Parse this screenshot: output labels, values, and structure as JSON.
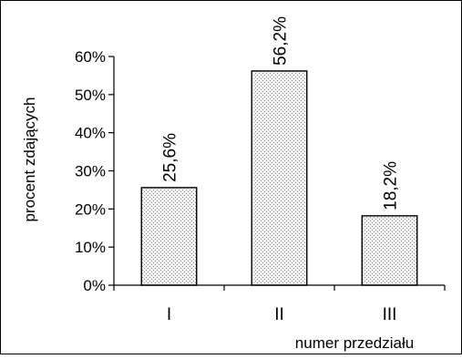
{
  "chart_data": {
    "type": "bar",
    "categories": [
      "I",
      "II",
      "III"
    ],
    "values": [
      25.6,
      56.2,
      18.2
    ],
    "data_labels": [
      "25,6%",
      "56,2%",
      "18,2%"
    ],
    "xlabel": "numer przedziału",
    "ylabel": "procent zdających",
    "ylim": [
      0,
      60
    ],
    "yticks": [
      0,
      10,
      20,
      30,
      40,
      50,
      60
    ],
    "ytick_labels": [
      "0%",
      "10%",
      "20%",
      "30%",
      "40%",
      "50%",
      "60%"
    ],
    "grid": false,
    "legend": "none",
    "bar_pattern": "dotted-gray"
  }
}
